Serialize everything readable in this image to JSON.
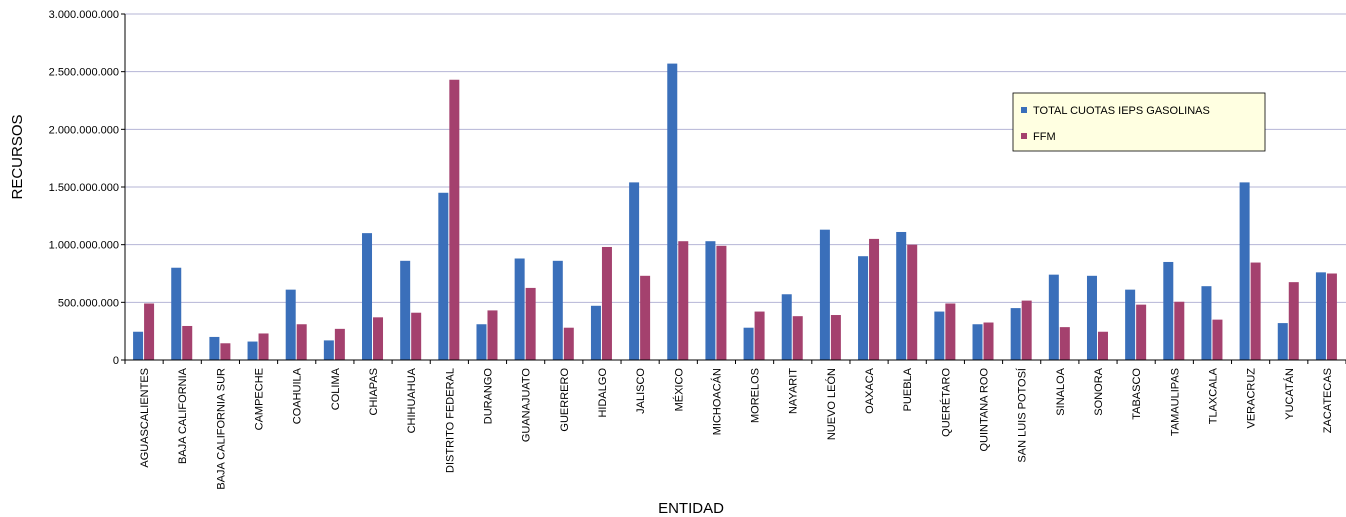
{
  "chart_data": {
    "type": "bar",
    "title": "",
    "xlabel": "ENTIDAD",
    "ylabel": "RECURSOS",
    "ylim": [
      0,
      3000000000
    ],
    "yticks": [
      0,
      500000000,
      1000000000,
      1500000000,
      2000000000,
      2500000000,
      3000000000
    ],
    "ytick_labels": [
      "0",
      "500.000.000",
      "1.000.000.000",
      "1.500.000.000",
      "2.000.000.000",
      "2.500.000.000",
      "3.000.000.000"
    ],
    "grid": true,
    "legend_position": "top-right",
    "categories": [
      "AGUASCALIENTES",
      "BAJA CALIFORNIA",
      "BAJA CALIFORNIA SUR",
      "CAMPECHE",
      "COAHUILA",
      "COLIMA",
      "CHIAPAS",
      "CHIHUAHUA",
      "DISTRITO FEDERAL",
      "DURANGO",
      "GUANAJUATO",
      "GUERRERO",
      "HIDALGO",
      "JALISCO",
      "MÉXICO",
      "MICHOACÁN",
      "MORELOS",
      "NAYARIT",
      "NUEVO LEÓN",
      "OAXACA",
      "PUEBLA",
      "QUERÉTARO",
      "QUINTANA ROO",
      "SAN LUIS POTOSÍ",
      "SINALOA",
      "SONORA",
      "TABASCO",
      "TAMAULIPAS",
      "TLAXCALA",
      "VERACRUZ",
      "YUCATÁN",
      "ZACATECAS"
    ],
    "series": [
      {
        "name": "TOTAL CUOTAS IEPS GASOLINAS",
        "color": "#3a6fba",
        "values": [
          245000000,
          800000000,
          200000000,
          160000000,
          610000000,
          170000000,
          1100000000,
          860000000,
          1450000000,
          310000000,
          880000000,
          860000000,
          470000000,
          1540000000,
          2570000000,
          1030000000,
          280000000,
          570000000,
          1130000000,
          900000000,
          1110000000,
          420000000,
          310000000,
          450000000,
          740000000,
          730000000,
          610000000,
          850000000,
          640000000,
          1540000000,
          320000000,
          760000000
        ]
      },
      {
        "name": "FFM",
        "color": "#a4416e",
        "values": [
          490000000,
          295000000,
          145000000,
          230000000,
          310000000,
          270000000,
          370000000,
          410000000,
          2430000000,
          430000000,
          625000000,
          280000000,
          980000000,
          730000000,
          1030000000,
          990000000,
          420000000,
          380000000,
          390000000,
          1050000000,
          1000000000,
          490000000,
          325000000,
          515000000,
          285000000,
          245000000,
          480000000,
          505000000,
          350000000,
          845000000,
          675000000,
          750000000
        ]
      }
    ]
  }
}
